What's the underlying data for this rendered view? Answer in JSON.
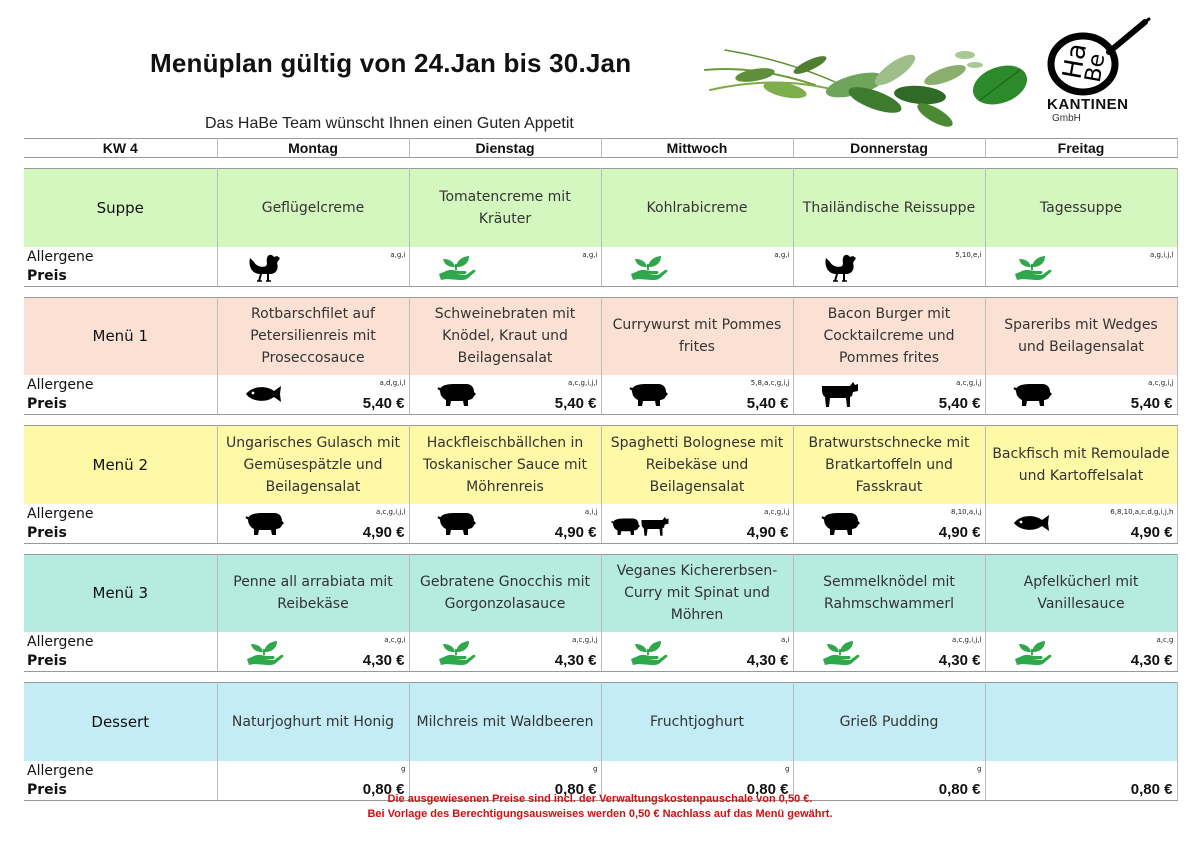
{
  "header": {
    "title": "Menüplan gültig von 24.Jan bis 30.Jan",
    "subtitle": "Das HaBe Team wünscht Ihnen einen Guten Appetit"
  },
  "logo": {
    "mark": "HaBe",
    "word": "KANTINEN",
    "sub": "GmbH"
  },
  "table": {
    "week": "KW 4",
    "days": [
      "Montag",
      "Dienstag",
      "Mittwoch",
      "Donnerstag",
      "Freitag"
    ],
    "info_labels": {
      "allergens": "Allergene",
      "price": "Preis"
    },
    "sections": [
      {
        "name": "Suppe",
        "dishes": [
          {
            "text": "Geflügelcreme",
            "icon": "chicken-icon",
            "allergens": "a,g,i",
            "price": ""
          },
          {
            "text": "Tomatencreme mit Kräuter",
            "icon": "vegan-hand-icon",
            "allergens": "a,g,i",
            "price": ""
          },
          {
            "text": "Kohlrabicreme",
            "icon": "vegan-hand-icon",
            "allergens": "a,g,i",
            "price": ""
          },
          {
            "text": "Thailändische Reissuppe",
            "icon": "chicken-icon",
            "allergens": "5,10,e,i",
            "price": ""
          },
          {
            "text": "Tagessuppe",
            "icon": "vegan-hand-icon",
            "allergens": "a,g,i,j,l",
            "price": ""
          }
        ]
      },
      {
        "name": "Menü 1",
        "dishes": [
          {
            "text": "Rotbarschfilet auf Petersilienreis mit Proseccosauce",
            "icon": "fish-icon",
            "allergens": "a,d,g,i,l",
            "price": "5,40 €"
          },
          {
            "text": "Schweinebraten mit Knödel, Kraut und Beilagensalat",
            "icon": "pig-icon",
            "allergens": "a,c,g,i,j,l",
            "price": "5,40 €"
          },
          {
            "text": "Currywurst mit Pommes frites",
            "icon": "pig-icon",
            "allergens": "5,8,a,c,g,i,j",
            "price": "5,40 €"
          },
          {
            "text": "Bacon Burger mit Cocktailcreme und Pommes frites",
            "icon": "cow-icon",
            "allergens": "a,c,g,i,j",
            "price": "5,40 €"
          },
          {
            "text": "Spareribs mit Wedges und Beilagensalat",
            "icon": "pig-icon",
            "allergens": "a,c,g,i,j",
            "price": "5,40 €"
          }
        ]
      },
      {
        "name": "Menü 2",
        "dishes": [
          {
            "text": "Ungarisches Gulasch mit Gemüsespätzle und Beilagensalat",
            "icon": "pig-icon",
            "allergens": "a,c,g,i,j,l",
            "price": "4,90 €"
          },
          {
            "text": "Hackfleischbällchen in Toskanischer Sauce mit Möhrenreis",
            "icon": "pig-icon",
            "allergens": "a,i,j",
            "price": "4,90 €"
          },
          {
            "text": "Spaghetti Bolognese mit Reibekäse und Beilagensalat",
            "icon": "pig-cow-icon",
            "allergens": "a,c,g,i,j",
            "price": "4,90 €"
          },
          {
            "text": "Bratwurstschnecke mit Bratkartoffeln und Fasskraut",
            "icon": "pig-icon",
            "allergens": "8,10,a,i,j",
            "price": "4,90 €"
          },
          {
            "text": "Backfisch mit Remoulade und Kartoffelsalat",
            "icon": "fish-icon",
            "allergens": "6,8,10,a,c,d,g,i,j,h",
            "price": "4,90 €"
          }
        ]
      },
      {
        "name": "Menü 3",
        "dishes": [
          {
            "text": "Penne all arrabiata mit Reibekäse",
            "icon": "vegan-hand-icon",
            "allergens": "a,c,g,i",
            "price": "4,30 €"
          },
          {
            "text": "Gebratene Gnocchis mit Gorgonzolasauce",
            "icon": "vegan-hand-icon",
            "allergens": "a,c,g,i,j",
            "price": "4,30 €"
          },
          {
            "text": "Veganes Kichererbsen-Curry mit Spinat und Möhren",
            "icon": "vegan-hand-icon",
            "allergens": "a,i",
            "price": "4,30 €"
          },
          {
            "text": "Semmelknödel mit Rahmschwammerl",
            "icon": "vegan-hand-icon",
            "allergens": "a,c,g,i,j,l",
            "price": "4,30 €"
          },
          {
            "text": "Apfelkücherl mit Vanillesauce",
            "icon": "vegan-hand-icon",
            "allergens": "a,c,g",
            "price": "4,30 €"
          }
        ]
      },
      {
        "name": "Dessert",
        "dishes": [
          {
            "text": "Naturjoghurt mit Honig",
            "icon": "",
            "allergens": "g",
            "price": "0,80 €"
          },
          {
            "text": "Milchreis mit Waldbeeren",
            "icon": "",
            "allergens": "g",
            "price": "0,80 €"
          },
          {
            "text": "Fruchtjoghurt",
            "icon": "",
            "allergens": "g",
            "price": "0,80 €"
          },
          {
            "text": "Grieß Pudding",
            "icon": "",
            "allergens": "g",
            "price": "0,80 €"
          },
          {
            "text": "",
            "icon": "",
            "allergens": "",
            "price": "0,80 €"
          }
        ]
      }
    ]
  },
  "footer": {
    "line1": "Die ausgewiesenen Preise sind incl. der Verwaltungskostenpauschale von 0,50 €.",
    "line2": "Bei Vorlage des Berechtigungsausweises werden 0,50 € Nachlass auf das Menü gewährt."
  },
  "colors": {
    "suppe": "#d4f7bf",
    "menu1": "#fbe1d4",
    "menu2": "#fdf9a6",
    "menu3": "#b6ebdf",
    "dessert": "#c4ecf7",
    "vegan_icon": "#2ea84a",
    "footer_text": "#d01010"
  }
}
